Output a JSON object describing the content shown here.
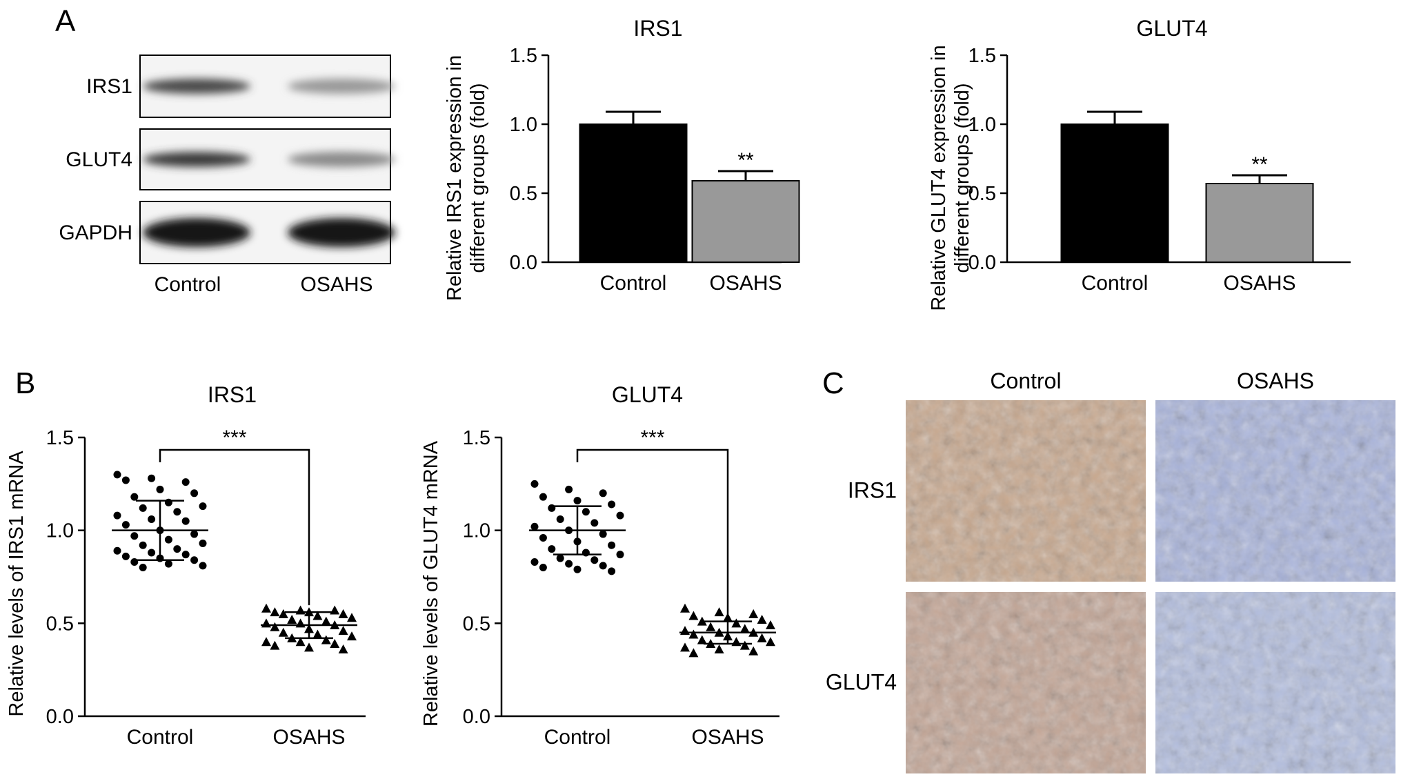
{
  "panel_labels": {
    "a": "A",
    "b": "B",
    "c": "C"
  },
  "western_blot": {
    "rows": [
      "IRS1",
      "GLUT4",
      "GAPDH"
    ],
    "lanes": [
      "Control",
      "OSAHS"
    ],
    "band_intensity": [
      [
        0.75,
        0.38
      ],
      [
        0.82,
        0.45
      ],
      [
        1.0,
        0.98
      ]
    ]
  },
  "ihc": {
    "columns": [
      "Control",
      "OSAHS"
    ],
    "rows": [
      "IRS1",
      "GLUT4"
    ],
    "tints": [
      [
        "#c8a88e",
        "#a9b4dc"
      ],
      [
        "#c3a595",
        "#b3bedf"
      ]
    ]
  },
  "colors": {
    "control_bar": "#000000",
    "osahs_bar": "#999999",
    "axis": "#000000"
  },
  "chart_data": [
    {
      "type": "bar",
      "title": "IRS1",
      "ylabel": "Relative IRS1 expression in different groups (fold)",
      "categories": [
        "Control",
        "OSAHS"
      ],
      "values": [
        1.0,
        0.59
      ],
      "errors": [
        0.09,
        0.07
      ],
      "significance": [
        "",
        "**"
      ],
      "ylim": [
        0,
        1.5
      ],
      "yticks": [
        "0.0",
        "0.5",
        "1.0",
        "1.5"
      ]
    },
    {
      "type": "bar",
      "title": "GLUT4",
      "ylabel": "Relative GLUT4 expression in different groups (fold)",
      "categories": [
        "Control",
        "OSAHS"
      ],
      "values": [
        1.0,
        0.57
      ],
      "errors": [
        0.09,
        0.06
      ],
      "significance": [
        "",
        "**"
      ],
      "ylim": [
        0,
        1.5
      ],
      "yticks": [
        "0.0",
        "0.5",
        "1.0",
        "1.5"
      ]
    },
    {
      "type": "scatter",
      "title": "IRS1",
      "ylabel": "Relative levels of IRS1 mRNA",
      "categories": [
        "Control",
        "OSAHS"
      ],
      "series": [
        {
          "values": [
            1.3,
            1.28,
            1.26,
            1.27,
            1.22,
            1.2,
            1.18,
            1.15,
            1.13,
            1.12,
            1.1,
            1.08,
            1.06,
            1.05,
            1.03,
            1.0,
            0.98,
            0.97,
            0.95,
            0.93,
            0.92,
            0.9,
            0.89,
            0.88,
            0.87,
            0.86,
            0.85,
            0.84,
            0.83,
            0.82,
            0.81,
            0.8
          ]
        },
        {
          "values": [
            0.58,
            0.57,
            0.57,
            0.56,
            0.56,
            0.55,
            0.55,
            0.54,
            0.53,
            0.52,
            0.51,
            0.5,
            0.5,
            0.49,
            0.48,
            0.47,
            0.46,
            0.45,
            0.44,
            0.43,
            0.42,
            0.41,
            0.4,
            0.4,
            0.39,
            0.38,
            0.37,
            0.36
          ]
        }
      ],
      "mean": [
        1.0,
        0.49
      ],
      "sd": [
        0.16,
        0.07
      ],
      "significance": "***",
      "ylim": [
        0,
        1.5
      ],
      "yticks": [
        "0.0",
        "0.5",
        "1.0",
        "1.5"
      ]
    },
    {
      "type": "scatter",
      "title": "GLUT4",
      "ylabel": "Relative levels of GLUT4 mRNA",
      "categories": [
        "Control",
        "OSAHS"
      ],
      "series": [
        {
          "values": [
            1.25,
            1.22,
            1.2,
            1.18,
            1.16,
            1.14,
            1.12,
            1.1,
            1.08,
            1.06,
            1.04,
            1.02,
            1.0,
            0.98,
            0.96,
            0.94,
            0.92,
            0.9,
            0.88,
            0.87,
            0.85,
            0.84,
            0.83,
            0.82,
            0.81,
            0.8,
            0.79,
            0.78
          ]
        },
        {
          "values": [
            0.58,
            0.56,
            0.55,
            0.54,
            0.53,
            0.52,
            0.51,
            0.5,
            0.49,
            0.48,
            0.47,
            0.46,
            0.45,
            0.45,
            0.44,
            0.43,
            0.42,
            0.41,
            0.4,
            0.4,
            0.39,
            0.38,
            0.37,
            0.36,
            0.35,
            0.34
          ]
        }
      ],
      "mean": [
        1.0,
        0.45
      ],
      "sd": [
        0.13,
        0.06
      ],
      "significance": "***",
      "ylim": [
        0,
        1.5
      ],
      "yticks": [
        "0.0",
        "0.5",
        "1.0",
        "1.5"
      ]
    }
  ]
}
